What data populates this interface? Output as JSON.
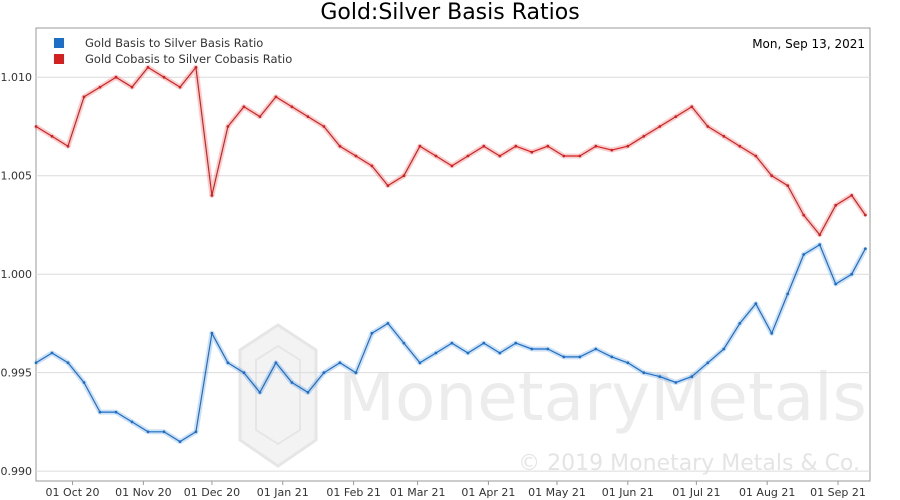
{
  "chart_data": {
    "type": "line",
    "title": "Gold:Silver Basis Ratios",
    "date_label": "Mon, Sep 13, 2021",
    "xlabel": "",
    "ylabel": "",
    "ylim": [
      0.9895,
      1.0125
    ],
    "yticks": [
      0.99,
      0.995,
      1.0,
      1.005,
      1.01
    ],
    "ytick_labels": [
      "0.990",
      "0.995",
      "1.000",
      "1.005",
      "1.010"
    ],
    "xlim": [
      "2020-09-15",
      "2021-09-15"
    ],
    "xticks": [
      "2020-10-01",
      "2020-11-01",
      "2020-12-01",
      "2021-01-01",
      "2021-02-01",
      "2021-03-01",
      "2021-04-01",
      "2021-05-01",
      "2021-06-01",
      "2021-07-01",
      "2021-08-01",
      "2021-09-01"
    ],
    "xtick_labels": [
      "01 Oct 20",
      "01 Nov 20",
      "01 Dec 20",
      "01 Jan 21",
      "01 Feb 21",
      "01 Mar 21",
      "01 Apr 21",
      "01 May 21",
      "01 Jun 21",
      "01 Jul 21",
      "01 Aug 21",
      "01 Sep 21"
    ],
    "grid": true,
    "legend_position": "top-left",
    "series": [
      {
        "name": "Gold Basis to Silver Basis Ratio",
        "color": "#1a6fc8",
        "x": [
          "2020-09-15",
          "2020-09-22",
          "2020-09-29",
          "2020-10-06",
          "2020-10-13",
          "2020-10-20",
          "2020-10-27",
          "2020-11-03",
          "2020-11-10",
          "2020-11-17",
          "2020-11-24",
          "2020-12-01",
          "2020-12-08",
          "2020-12-15",
          "2020-12-22",
          "2020-12-29",
          "2021-01-05",
          "2021-01-12",
          "2021-01-19",
          "2021-01-26",
          "2021-02-02",
          "2021-02-09",
          "2021-02-16",
          "2021-02-23",
          "2021-03-02",
          "2021-03-09",
          "2021-03-16",
          "2021-03-23",
          "2021-03-30",
          "2021-04-06",
          "2021-04-13",
          "2021-04-20",
          "2021-04-27",
          "2021-05-04",
          "2021-05-11",
          "2021-05-18",
          "2021-05-25",
          "2021-06-01",
          "2021-06-08",
          "2021-06-15",
          "2021-06-22",
          "2021-06-29",
          "2021-07-06",
          "2021-07-13",
          "2021-07-20",
          "2021-07-27",
          "2021-08-03",
          "2021-08-10",
          "2021-08-17",
          "2021-08-24",
          "2021-08-31",
          "2021-09-07",
          "2021-09-13"
        ],
        "values": [
          0.9955,
          0.996,
          0.9955,
          0.9945,
          0.993,
          0.993,
          0.9925,
          0.992,
          0.992,
          0.9915,
          0.992,
          0.997,
          0.9955,
          0.995,
          0.994,
          0.9955,
          0.9945,
          0.994,
          0.995,
          0.9955,
          0.995,
          0.997,
          0.9975,
          0.9965,
          0.9955,
          0.996,
          0.9965,
          0.996,
          0.9965,
          0.996,
          0.9965,
          0.9962,
          0.9962,
          0.9958,
          0.9958,
          0.9962,
          0.9958,
          0.9955,
          0.995,
          0.9948,
          0.9945,
          0.9948,
          0.9955,
          0.9962,
          0.9975,
          0.9985,
          0.997,
          0.999,
          1.001,
          1.0015,
          0.9995,
          1.0,
          1.0013
        ]
      },
      {
        "name": "Gold Cobasis to Silver Cobasis Ratio",
        "color": "#d42020",
        "x": [
          "2020-09-15",
          "2020-09-22",
          "2020-09-29",
          "2020-10-06",
          "2020-10-13",
          "2020-10-20",
          "2020-10-27",
          "2020-11-03",
          "2020-11-10",
          "2020-11-17",
          "2020-11-24",
          "2020-12-01",
          "2020-12-08",
          "2020-12-15",
          "2020-12-22",
          "2020-12-29",
          "2021-01-05",
          "2021-01-12",
          "2021-01-19",
          "2021-01-26",
          "2021-02-02",
          "2021-02-09",
          "2021-02-16",
          "2021-02-23",
          "2021-03-02",
          "2021-03-09",
          "2021-03-16",
          "2021-03-23",
          "2021-03-30",
          "2021-04-06",
          "2021-04-13",
          "2021-04-20",
          "2021-04-27",
          "2021-05-04",
          "2021-05-11",
          "2021-05-18",
          "2021-05-25",
          "2021-06-01",
          "2021-06-08",
          "2021-06-15",
          "2021-06-22",
          "2021-06-29",
          "2021-07-06",
          "2021-07-13",
          "2021-07-20",
          "2021-07-27",
          "2021-08-03",
          "2021-08-10",
          "2021-08-17",
          "2021-08-24",
          "2021-08-31",
          "2021-09-07",
          "2021-09-13"
        ],
        "values": [
          1.0075,
          1.007,
          1.0065,
          1.009,
          1.0095,
          1.01,
          1.0095,
          1.0105,
          1.01,
          1.0095,
          1.0105,
          1.004,
          1.0075,
          1.0085,
          1.008,
          1.009,
          1.0085,
          1.008,
          1.0075,
          1.0065,
          1.006,
          1.0055,
          1.0045,
          1.005,
          1.0065,
          1.006,
          1.0055,
          1.006,
          1.0065,
          1.006,
          1.0065,
          1.0062,
          1.0065,
          1.006,
          1.006,
          1.0065,
          1.0063,
          1.0065,
          1.007,
          1.0075,
          1.008,
          1.0085,
          1.0075,
          1.007,
          1.0065,
          1.006,
          1.005,
          1.0045,
          1.003,
          1.002,
          1.0035,
          1.004,
          1.003
        ]
      }
    ]
  },
  "watermark": {
    "brand": "MonetaryMetals",
    "copyright": "© 2019 Monetary Metals & Co."
  }
}
